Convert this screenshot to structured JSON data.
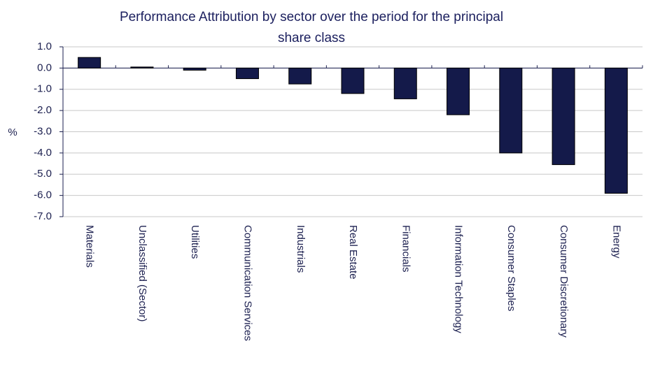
{
  "chart_data": {
    "type": "bar",
    "title": [
      "Performance Attribution by sector over the period for the principal",
      "share class"
    ],
    "y_label": "%",
    "categories": [
      "Materials",
      "Unclassified (Sector)",
      "Utilities",
      "Communication Services",
      "Industrials",
      "Real Estate",
      "Financials",
      "Information Technology",
      "Consumer Staples",
      "Consumer Discretionary",
      "Energy"
    ],
    "values": [
      0.5,
      0.05,
      -0.1,
      -0.5,
      -0.75,
      -1.2,
      -1.45,
      -2.2,
      -4.0,
      -4.55,
      -5.9
    ],
    "color": "#141a4a",
    "ylim": [
      -7,
      1
    ],
    "yticks": [
      {
        "value": 1,
        "label": "1.0"
      },
      {
        "value": 0,
        "label": "0.0"
      },
      {
        "value": -1,
        "label": "-1.0"
      },
      {
        "value": -2,
        "label": "-2.0"
      },
      {
        "value": -3,
        "label": "-3.0"
      },
      {
        "value": -4,
        "label": "-4.0"
      },
      {
        "value": -5,
        "label": "-5.0"
      },
      {
        "value": -6,
        "label": "-6.0"
      },
      {
        "value": -7,
        "label": "-7.0"
      }
    ],
    "grid": true
  }
}
